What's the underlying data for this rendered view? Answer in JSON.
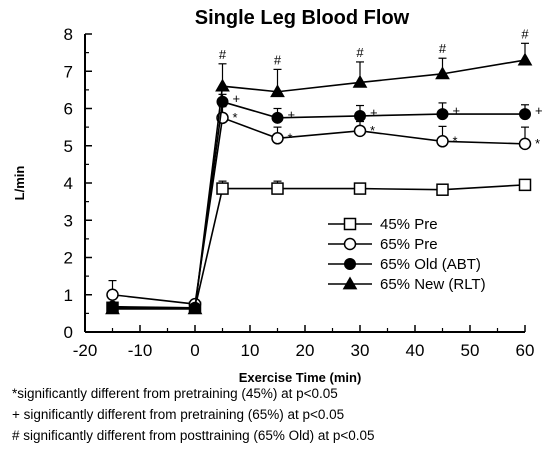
{
  "chart_data": {
    "type": "line",
    "title": "Single Leg Blood Flow",
    "xlabel": "Exercise Time (min)",
    "ylabel": "L/min",
    "xlim": [
      -20,
      60
    ],
    "ylim": [
      0,
      8
    ],
    "xticks": [
      -20,
      -10,
      0,
      10,
      20,
      30,
      40,
      50,
      60
    ],
    "yticks": [
      0,
      1,
      2,
      3,
      4,
      5,
      6,
      7,
      8
    ],
    "grid": false,
    "legend_position": "center-right",
    "series": [
      {
        "name": "45% Pre",
        "marker": "open-square",
        "x": [
          -15,
          0,
          5,
          15,
          30,
          45,
          60
        ],
        "y": [
          0.65,
          0.65,
          3.85,
          3.85,
          3.85,
          3.82,
          3.95
        ],
        "err": [
          0.12,
          0.08,
          0.2,
          0.2,
          0.12,
          0.12,
          0.12
        ],
        "marks": [
          "",
          "",
          "",
          "",
          "",
          "",
          ""
        ]
      },
      {
        "name": "65% Pre",
        "marker": "open-circle",
        "x": [
          -15,
          0,
          5,
          15,
          30,
          45,
          60
        ],
        "y": [
          1.0,
          0.75,
          5.75,
          5.2,
          5.4,
          5.12,
          5.05
        ],
        "err": [
          0.38,
          0.08,
          0.3,
          0.3,
          0.25,
          0.4,
          0.45
        ],
        "marks": [
          "",
          "",
          "*",
          "*",
          "*",
          "*",
          "*"
        ]
      },
      {
        "name": "65% Old (ABT)",
        "marker": "filled-circle",
        "x": [
          -15,
          0,
          5,
          15,
          30,
          45,
          60
        ],
        "y": [
          0.68,
          0.65,
          6.18,
          5.75,
          5.8,
          5.85,
          5.85
        ],
        "err": [
          0.1,
          0.08,
          0.2,
          0.25,
          0.28,
          0.3,
          0.25
        ],
        "marks": [
          "",
          "",
          "+",
          "+",
          "+",
          "+",
          "+"
        ]
      },
      {
        "name": "65% New (RLT)",
        "marker": "filled-triangle",
        "x": [
          -15,
          0,
          5,
          15,
          30,
          45,
          60
        ],
        "y": [
          0.62,
          0.62,
          6.6,
          6.45,
          6.7,
          6.93,
          7.3
        ],
        "err": [
          0.1,
          0.08,
          0.6,
          0.6,
          0.55,
          0.42,
          0.45
        ],
        "marks": [
          "",
          "",
          "#",
          "#",
          "#",
          "#",
          "#"
        ]
      }
    ]
  },
  "footnotes": {
    "line1": "*significantly different from pretraining (45%) at p<0.05",
    "line2": "+ significantly different from pretraining (65%) at p<0.05",
    "line3": "# significantly different from posttraining (65% Old) at p<0.05"
  }
}
